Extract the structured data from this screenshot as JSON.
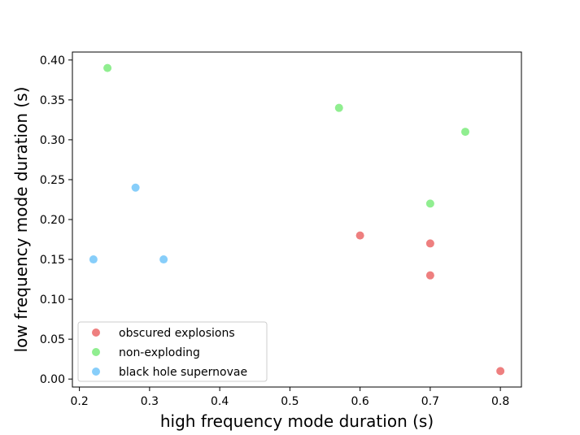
{
  "chart_data": {
    "type": "scatter",
    "title": "",
    "xlabel": "high frequency mode duration (s)",
    "ylabel": "low frequency mode duration (s)",
    "xlim": [
      0.19,
      0.83
    ],
    "ylim": [
      -0.01,
      0.41
    ],
    "xticks": [
      "0.2",
      "0.3",
      "0.4",
      "0.5",
      "0.6",
      "0.7",
      "0.8"
    ],
    "yticks": [
      "0.00",
      "0.05",
      "0.10",
      "0.15",
      "0.20",
      "0.25",
      "0.30",
      "0.35",
      "0.40"
    ],
    "grid": false,
    "legend_position": "lower-left",
    "series": [
      {
        "name": "obscured explosions",
        "color": "#ee7f7f",
        "points": [
          {
            "x": 0.6,
            "y": 0.18
          },
          {
            "x": 0.7,
            "y": 0.17
          },
          {
            "x": 0.7,
            "y": 0.13
          },
          {
            "x": 0.8,
            "y": 0.01
          }
        ]
      },
      {
        "name": "non-exploding",
        "color": "#90ee90",
        "points": [
          {
            "x": 0.24,
            "y": 0.39
          },
          {
            "x": 0.57,
            "y": 0.34
          },
          {
            "x": 0.75,
            "y": 0.31
          },
          {
            "x": 0.7,
            "y": 0.22
          }
        ]
      },
      {
        "name": "black hole supernovae",
        "color": "#87cefa",
        "points": [
          {
            "x": 0.28,
            "y": 0.24
          },
          {
            "x": 0.22,
            "y": 0.15
          },
          {
            "x": 0.32,
            "y": 0.15
          }
        ]
      }
    ]
  }
}
